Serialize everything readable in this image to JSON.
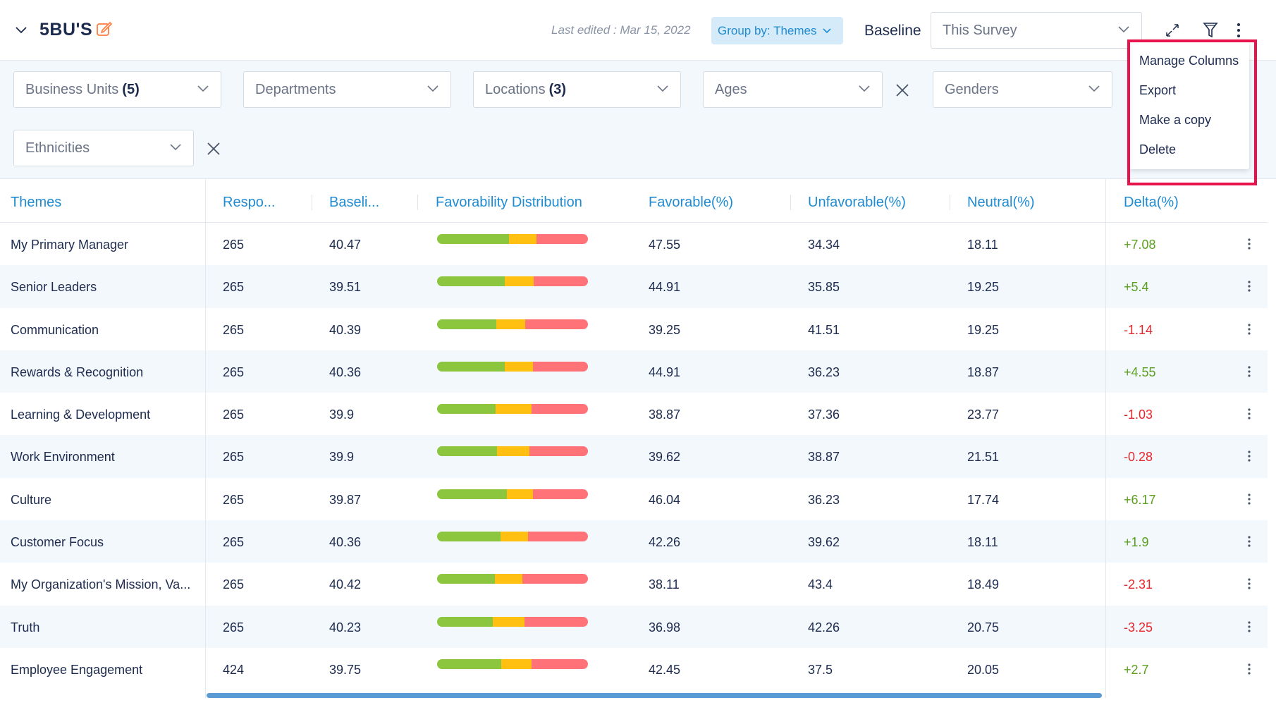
{
  "header": {
    "title": "5BU'S",
    "last_edited": "Last edited : Mar 15, 2022",
    "group_by": "Group by: Themes",
    "baseline_label": "Baseline",
    "baseline_value": "This Survey"
  },
  "filters": {
    "business_units": {
      "label": "Business Units",
      "count": "(5)"
    },
    "departments": {
      "label": "Departments"
    },
    "locations": {
      "label": "Locations",
      "count": "(3)"
    },
    "ages": {
      "label": "Ages"
    },
    "genders": {
      "label": "Genders"
    },
    "ethnicities": {
      "label": "Ethnicities"
    }
  },
  "table": {
    "headers": {
      "theme": "Themes",
      "responses": "Respo...",
      "baseline": "Baseli...",
      "distribution": "Favorability Distribution",
      "favorable": "Favorable(%)",
      "unfavorable": "Unfavorable(%)",
      "neutral": "Neutral(%)",
      "delta": "Delta(%)"
    },
    "rows": [
      {
        "theme": "My Primary Manager",
        "responses": "265",
        "baseline": "40.47",
        "favorable": "47.55",
        "unfavorable": "34.34",
        "neutral": "18.11",
        "delta": "+7.08"
      },
      {
        "theme": "Senior Leaders",
        "responses": "265",
        "baseline": "39.51",
        "favorable": "44.91",
        "unfavorable": "35.85",
        "neutral": "19.25",
        "delta": "+5.4"
      },
      {
        "theme": "Communication",
        "responses": "265",
        "baseline": "40.39",
        "favorable": "39.25",
        "unfavorable": "41.51",
        "neutral": "19.25",
        "delta": "-1.14"
      },
      {
        "theme": "Rewards & Recognition",
        "responses": "265",
        "baseline": "40.36",
        "favorable": "44.91",
        "unfavorable": "36.23",
        "neutral": "18.87",
        "delta": "+4.55"
      },
      {
        "theme": "Learning & Development",
        "responses": "265",
        "baseline": "39.9",
        "favorable": "38.87",
        "unfavorable": "37.36",
        "neutral": "23.77",
        "delta": "-1.03"
      },
      {
        "theme": "Work Environment",
        "responses": "265",
        "baseline": "39.9",
        "favorable": "39.62",
        "unfavorable": "38.87",
        "neutral": "21.51",
        "delta": "-0.28"
      },
      {
        "theme": "Culture",
        "responses": "265",
        "baseline": "39.87",
        "favorable": "46.04",
        "unfavorable": "36.23",
        "neutral": "17.74",
        "delta": "+6.17"
      },
      {
        "theme": "Customer Focus",
        "responses": "265",
        "baseline": "40.36",
        "favorable": "42.26",
        "unfavorable": "39.62",
        "neutral": "18.11",
        "delta": "+1.9"
      },
      {
        "theme": "My Organization's Mission, Va...",
        "responses": "265",
        "baseline": "40.42",
        "favorable": "38.11",
        "unfavorable": "43.4",
        "neutral": "18.49",
        "delta": "-2.31"
      },
      {
        "theme": "Truth",
        "responses": "265",
        "baseline": "40.23",
        "favorable": "36.98",
        "unfavorable": "42.26",
        "neutral": "20.75",
        "delta": "-3.25"
      },
      {
        "theme": "Employee Engagement",
        "responses": "424",
        "baseline": "39.75",
        "favorable": "42.45",
        "unfavorable": "37.5",
        "neutral": "20.05",
        "delta": "+2.7"
      }
    ]
  },
  "menu": {
    "items": [
      "Manage Columns",
      "Export",
      "Make a copy",
      "Delete"
    ]
  },
  "colors": {
    "favorable": "#8cc63f",
    "neutral": "#ffc012",
    "unfavorable": "#ff7278",
    "accent": "#1f8bd1",
    "highlight": "#e8124c",
    "delta_positive": "#5a9f1d",
    "delta_negative": "#e5282e"
  }
}
